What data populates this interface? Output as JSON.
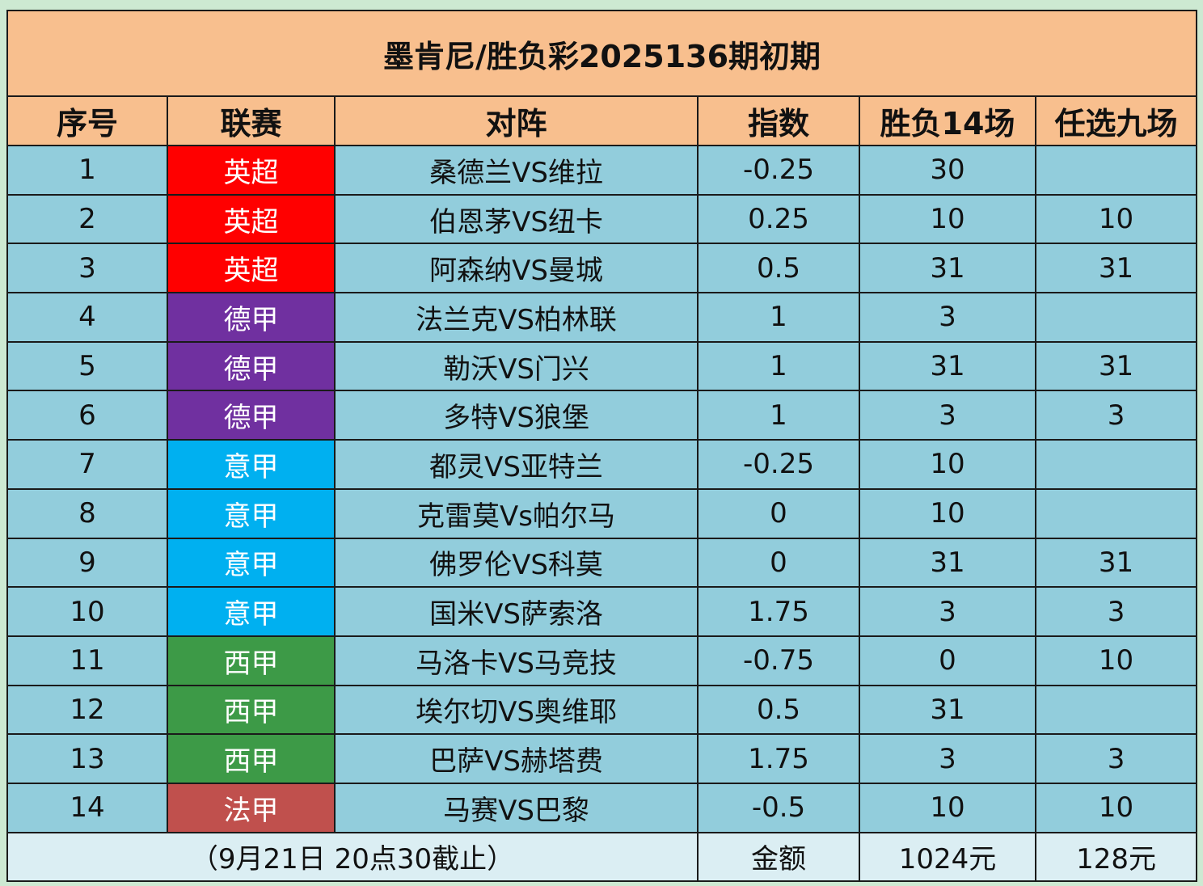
{
  "title": "墨肯尼/胜负彩2025136期初期",
  "headers": [
    "序号",
    "联赛",
    "对阵",
    "指数",
    "胜负14场",
    "任选九场"
  ],
  "league_colors": {
    "英超": "#ff0000",
    "德甲": "#7030a0",
    "意甲": "#00b0f0",
    "西甲": "#3d9a47",
    "法甲": "#c0504d"
  },
  "rows": [
    {
      "no": "1",
      "league": "英超",
      "match": "桑德兰VS维拉",
      "index": "-0.25",
      "sf14": "30",
      "rx9": ""
    },
    {
      "no": "2",
      "league": "英超",
      "match": "伯恩茅VS纽卡",
      "index": "0.25",
      "sf14": "10",
      "rx9": "10"
    },
    {
      "no": "3",
      "league": "英超",
      "match": "阿森纳VS曼城",
      "index": "0.5",
      "sf14": "31",
      "rx9": "31"
    },
    {
      "no": "4",
      "league": "德甲",
      "match": "法兰克VS柏林联",
      "index": "1",
      "sf14": "3",
      "rx9": ""
    },
    {
      "no": "5",
      "league": "德甲",
      "match": "勒沃VS门兴",
      "index": "1",
      "sf14": "31",
      "rx9": "31"
    },
    {
      "no": "6",
      "league": "德甲",
      "match": "多特VS狼堡",
      "index": "1",
      "sf14": "3",
      "rx9": "3"
    },
    {
      "no": "7",
      "league": "意甲",
      "match": "都灵VS亚特兰",
      "index": "-0.25",
      "sf14": "10",
      "rx9": ""
    },
    {
      "no": "8",
      "league": "意甲",
      "match": "克雷莫Vs帕尔马",
      "index": "0",
      "sf14": "10",
      "rx9": ""
    },
    {
      "no": "9",
      "league": "意甲",
      "match": "佛罗伦VS科莫",
      "index": "0",
      "sf14": "31",
      "rx9": "31"
    },
    {
      "no": "10",
      "league": "意甲",
      "match": "国米VS萨索洛",
      "index": "1.75",
      "sf14": "3",
      "rx9": "3"
    },
    {
      "no": "11",
      "league": "西甲",
      "match": "马洛卡VS马竞技",
      "index": "-0.75",
      "sf14": "0",
      "rx9": "10"
    },
    {
      "no": "12",
      "league": "西甲",
      "match": "埃尔切VS奥维耶",
      "index": "0.5",
      "sf14": "31",
      "rx9": ""
    },
    {
      "no": "13",
      "league": "西甲",
      "match": "巴萨VS赫塔费",
      "index": "1.75",
      "sf14": "3",
      "rx9": "3"
    },
    {
      "no": "14",
      "league": "法甲",
      "match": "马赛VS巴黎",
      "index": "-0.5",
      "sf14": "10",
      "rx9": "10"
    }
  ],
  "footer": {
    "deadline": "（9月21日  20点30截止）",
    "amount_label": "金额",
    "sf14_amount": "1024元",
    "rx9_amount": "128元"
  }
}
